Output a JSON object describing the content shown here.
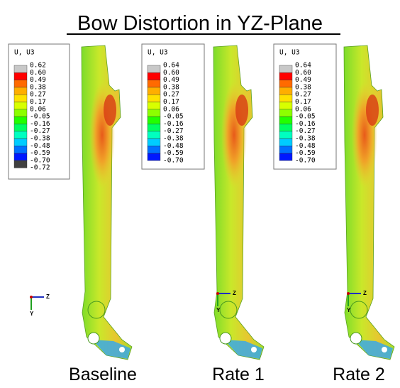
{
  "title": "Bow Distortion in YZ-Plane",
  "panels": [
    {
      "caption": "Baseline",
      "legend": {
        "title": "U, U3",
        "labels": [
          "0.62",
          "0.60",
          "0.49",
          "0.38",
          "0.27",
          "0.17",
          "0.06",
          "-0.05",
          "-0.16",
          "-0.27",
          "-0.38",
          "-0.48",
          "-0.59",
          "-0.70",
          "-0.72"
        ]
      },
      "triad": {
        "horizontal": "Z",
        "vertical": "Y"
      }
    },
    {
      "caption": "Rate 1",
      "legend": {
        "title": "U, U3",
        "labels": [
          "0.64",
          "0.60",
          "0.49",
          "0.38",
          "0.27",
          "0.17",
          "0.06",
          "-0.05",
          "-0.16",
          "-0.27",
          "-0.38",
          "-0.48",
          "-0.59",
          "-0.70"
        ]
      },
      "triad": {
        "horizontal": "Z",
        "vertical": "Y"
      }
    },
    {
      "caption": "Rate 2",
      "legend": {
        "title": "U, U3",
        "labels": [
          "0.64",
          "0.60",
          "0.49",
          "0.38",
          "0.27",
          "0.17",
          "0.06",
          "-0.05",
          "-0.16",
          "-0.27",
          "-0.38",
          "-0.48",
          "-0.59",
          "-0.70"
        ]
      },
      "triad": {
        "horizontal": "Z",
        "vertical": "Y"
      }
    }
  ]
}
